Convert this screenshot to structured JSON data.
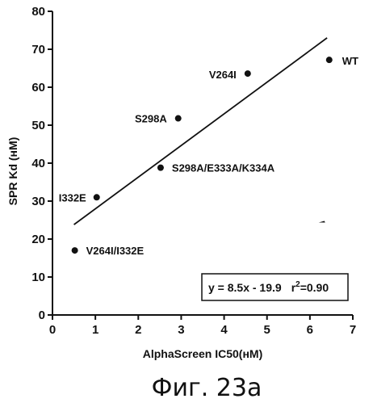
{
  "chart_data": {
    "type": "scatter",
    "xlabel": "AlphaScreen IC50(нМ)",
    "ylabel": "SPR Kd (нМ)",
    "xlim": [
      0,
      7
    ],
    "ylim": [
      0,
      80
    ],
    "x_ticks": [
      "0",
      "1",
      "2",
      "3",
      "4",
      "5",
      "6",
      "7"
    ],
    "y_ticks": [
      "0",
      "10",
      "20",
      "30",
      "40",
      "50",
      "60",
      "70",
      "80"
    ],
    "grid": false,
    "points": [
      {
        "label": "WT",
        "x": 6.45,
        "y": 67.2
      },
      {
        "label": "V264I",
        "x": 4.55,
        "y": 63.6
      },
      {
        "label": "S298A",
        "x": 2.93,
        "y": 51.8
      },
      {
        "label": "S298A/E333A/K334A",
        "x": 2.52,
        "y": 38.8
      },
      {
        "label": "I332E",
        "x": 1.03,
        "y": 31.0
      },
      {
        "label": "V264I/I332E",
        "x": 0.52,
        "y": 17.0
      }
    ],
    "fit_line": {
      "x": [
        0.5,
        6.4
      ],
      "y": [
        23.8,
        73.0
      ]
    },
    "equation": "y = 8.5x - 19.9",
    "r2_label": "r",
    "r2_exp": "2",
    "r2_value": "=0.90",
    "stray_mark": {
      "x": 6.28,
      "y": 24.8
    }
  },
  "caption": "Фиг. 23а"
}
